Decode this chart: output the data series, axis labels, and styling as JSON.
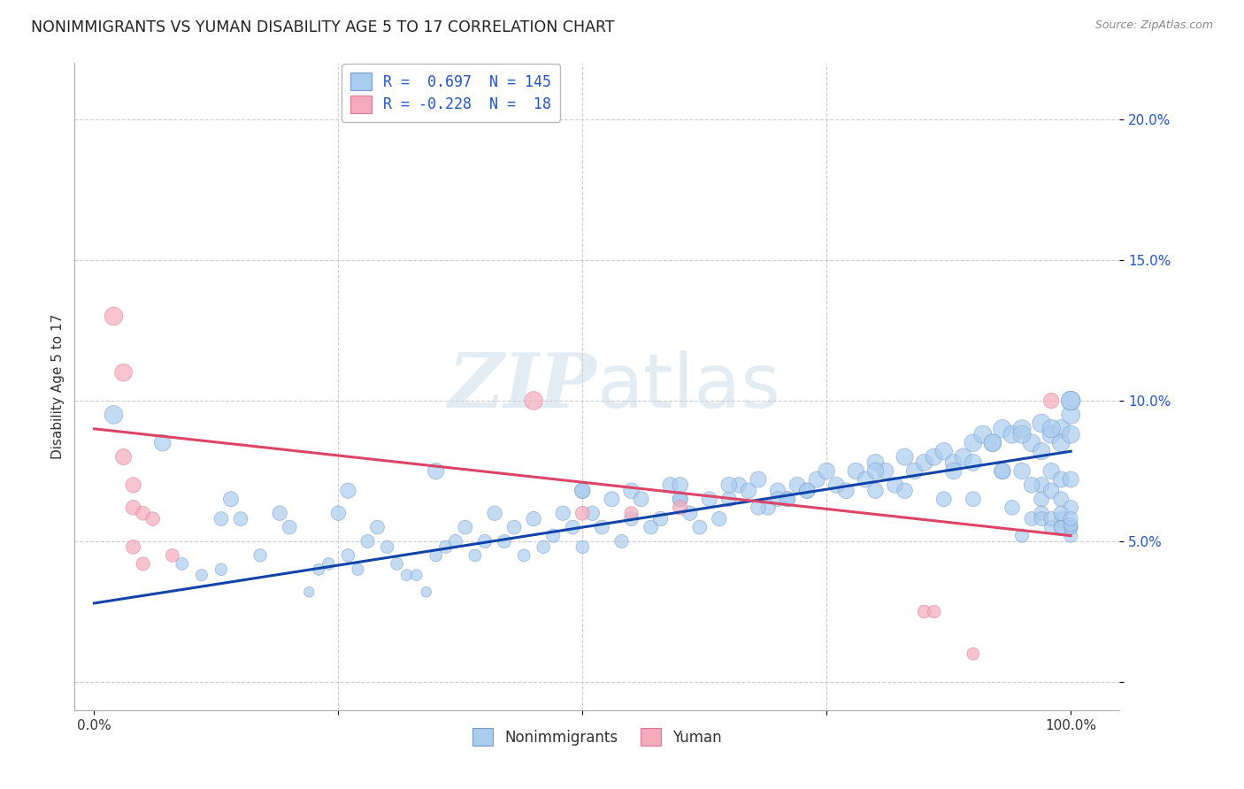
{
  "title": "NONIMMIGRANTS VS YUMAN DISABILITY AGE 5 TO 17 CORRELATION CHART",
  "source": "Source: ZipAtlas.com",
  "ylabel": "Disability Age 5 to 17",
  "yticks": [
    0.0,
    0.05,
    0.1,
    0.15,
    0.2
  ],
  "ytick_labels": [
    "",
    "5.0%",
    "10.0%",
    "15.0%",
    "20.0%"
  ],
  "xticks": [
    0.0,
    0.25,
    0.5,
    0.75,
    1.0
  ],
  "xtick_labels": [
    "0.0%",
    "",
    "",
    "",
    "100.0%"
  ],
  "xlim": [
    -0.02,
    1.05
  ],
  "ylim": [
    -0.01,
    0.22
  ],
  "blue_R": 0.697,
  "blue_N": 145,
  "pink_R": -0.228,
  "pink_N": 18,
  "blue_color": "#aaccee",
  "pink_color": "#f4aabb",
  "blue_edge_color": "#7799cc",
  "pink_edge_color": "#dd7799",
  "blue_line_color": "#1144aa",
  "pink_line_color": "#dd4466",
  "legend_text_color": "#2255cc",
  "watermark_color": "#c8d8e8",
  "background_color": "#ffffff",
  "grid_color": "#cccccc",
  "title_fontsize": 12.5,
  "axis_label_fontsize": 11,
  "tick_fontsize": 11,
  "blue_line_x0": 0.0,
  "blue_line_y0": 0.028,
  "blue_line_x1": 1.0,
  "blue_line_y1": 0.082,
  "pink_line_x0": 0.0,
  "pink_line_y0": 0.09,
  "pink_line_x1": 1.0,
  "pink_line_y1": 0.052,
  "blue_scatter_x": [
    0.02,
    0.07,
    0.09,
    0.11,
    0.13,
    0.14,
    0.15,
    0.17,
    0.19,
    0.2,
    0.22,
    0.23,
    0.24,
    0.25,
    0.26,
    0.27,
    0.28,
    0.29,
    0.3,
    0.31,
    0.32,
    0.33,
    0.34,
    0.35,
    0.36,
    0.37,
    0.38,
    0.39,
    0.4,
    0.41,
    0.42,
    0.43,
    0.44,
    0.45,
    0.46,
    0.47,
    0.48,
    0.49,
    0.5,
    0.51,
    0.52,
    0.53,
    0.54,
    0.55,
    0.56,
    0.57,
    0.58,
    0.59,
    0.6,
    0.61,
    0.62,
    0.63,
    0.64,
    0.65,
    0.66,
    0.67,
    0.68,
    0.69,
    0.7,
    0.71,
    0.72,
    0.73,
    0.74,
    0.75,
    0.76,
    0.77,
    0.78,
    0.79,
    0.8,
    0.81,
    0.82,
    0.83,
    0.84,
    0.85,
    0.86,
    0.87,
    0.88,
    0.89,
    0.9,
    0.91,
    0.92,
    0.93,
    0.94,
    0.95,
    0.96,
    0.97,
    0.98,
    0.99,
    1.0,
    1.0,
    0.26,
    0.35,
    0.5,
    0.6,
    0.7,
    0.8,
    0.9,
    0.92,
    0.95,
    0.97,
    0.98,
    0.99,
    1.0,
    1.0,
    0.88,
    0.93,
    0.95,
    0.97,
    0.98,
    0.99,
    1.0,
    0.71,
    0.8,
    0.87,
    0.93,
    0.96,
    0.97,
    0.98,
    0.99,
    1.0,
    0.83,
    0.9,
    0.94,
    0.96,
    0.97,
    0.98,
    0.99,
    1.0,
    0.95,
    0.97,
    0.99,
    1.0,
    0.98,
    0.99,
    1.0,
    0.99,
    1.0,
    1.0,
    0.13,
    0.5,
    0.55,
    0.6,
    0.65,
    0.68,
    0.73
  ],
  "blue_scatter_y": [
    0.095,
    0.085,
    0.042,
    0.038,
    0.04,
    0.065,
    0.058,
    0.045,
    0.06,
    0.055,
    0.032,
    0.04,
    0.042,
    0.06,
    0.045,
    0.04,
    0.05,
    0.055,
    0.048,
    0.042,
    0.038,
    0.038,
    0.032,
    0.045,
    0.048,
    0.05,
    0.055,
    0.045,
    0.05,
    0.06,
    0.05,
    0.055,
    0.045,
    0.058,
    0.048,
    0.052,
    0.06,
    0.055,
    0.048,
    0.06,
    0.055,
    0.065,
    0.05,
    0.068,
    0.065,
    0.055,
    0.058,
    0.07,
    0.065,
    0.06,
    0.055,
    0.065,
    0.058,
    0.065,
    0.07,
    0.068,
    0.072,
    0.062,
    0.068,
    0.065,
    0.07,
    0.068,
    0.072,
    0.075,
    0.07,
    0.068,
    0.075,
    0.072,
    0.078,
    0.075,
    0.07,
    0.08,
    0.075,
    0.078,
    0.08,
    0.082,
    0.078,
    0.08,
    0.085,
    0.088,
    0.085,
    0.09,
    0.088,
    0.09,
    0.085,
    0.092,
    0.088,
    0.09,
    0.095,
    0.1,
    0.068,
    0.075,
    0.068,
    0.07,
    0.065,
    0.075,
    0.078,
    0.085,
    0.088,
    0.082,
    0.09,
    0.085,
    0.088,
    0.1,
    0.075,
    0.075,
    0.075,
    0.07,
    0.075,
    0.072,
    0.072,
    0.065,
    0.068,
    0.065,
    0.075,
    0.07,
    0.065,
    0.068,
    0.065,
    0.062,
    0.068,
    0.065,
    0.062,
    0.058,
    0.06,
    0.055,
    0.058,
    0.055,
    0.052,
    0.058,
    0.055,
    0.052,
    0.058,
    0.055,
    0.055,
    0.06,
    0.056,
    0.058,
    0.058,
    0.068,
    0.058,
    0.065,
    0.07,
    0.062,
    0.068
  ],
  "blue_scatter_size": [
    220,
    180,
    100,
    90,
    95,
    150,
    130,
    110,
    140,
    130,
    70,
    90,
    95,
    140,
    110,
    90,
    120,
    130,
    110,
    100,
    85,
    85,
    70,
    100,
    110,
    120,
    130,
    100,
    120,
    140,
    120,
    130,
    100,
    140,
    110,
    120,
    140,
    130,
    110,
    140,
    130,
    150,
    120,
    160,
    150,
    130,
    140,
    160,
    150,
    140,
    130,
    150,
    140,
    150,
    160,
    160,
    170,
    145,
    160,
    150,
    165,
    158,
    172,
    178,
    165,
    162,
    178,
    172,
    185,
    178,
    165,
    190,
    178,
    185,
    190,
    195,
    185,
    192,
    200,
    210,
    200,
    215,
    208,
    215,
    205,
    220,
    210,
    218,
    225,
    240,
    155,
    175,
    155,
    162,
    148,
    173,
    183,
    200,
    208,
    193,
    215,
    200,
    208,
    240,
    178,
    178,
    178,
    165,
    175,
    170,
    170,
    148,
    158,
    148,
    173,
    162,
    148,
    158,
    148,
    142,
    158,
    148,
    142,
    133,
    140,
    128,
    133,
    128,
    120,
    133,
    128,
    120,
    133,
    128,
    128,
    140,
    130,
    135,
    130,
    158,
    135,
    150,
    165,
    143,
    158
  ],
  "pink_scatter_x": [
    0.02,
    0.03,
    0.03,
    0.04,
    0.04,
    0.04,
    0.05,
    0.05,
    0.06,
    0.08,
    0.45,
    0.5,
    0.6,
    0.85,
    0.9,
    0.55,
    0.86,
    0.98
  ],
  "pink_scatter_y": [
    0.13,
    0.11,
    0.08,
    0.07,
    0.062,
    0.048,
    0.042,
    0.06,
    0.058,
    0.045,
    0.1,
    0.06,
    0.062,
    0.025,
    0.01,
    0.06,
    0.025,
    0.1
  ],
  "pink_scatter_size": [
    220,
    200,
    170,
    155,
    145,
    130,
    120,
    130,
    125,
    115,
    220,
    130,
    140,
    115,
    100,
    115,
    110,
    155
  ]
}
